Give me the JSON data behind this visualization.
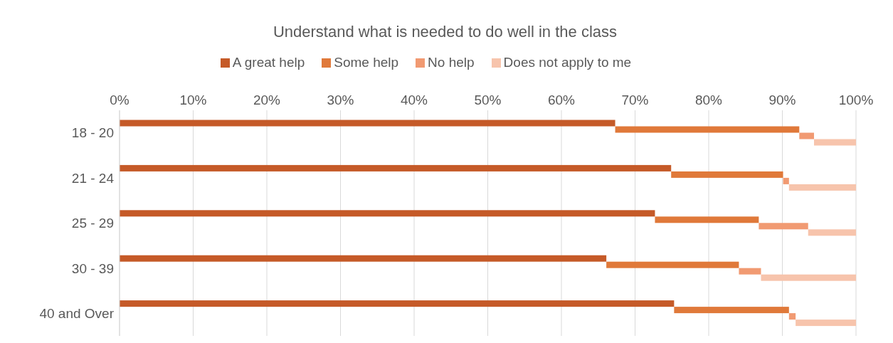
{
  "chart_data": {
    "type": "bar",
    "orientation": "horizontal",
    "stacked": true,
    "title": "Understand what is needed to do well in the class",
    "categories": [
      "18 - 20",
      "21 - 24",
      "25 - 29",
      "30 - 39",
      "40 and Over"
    ],
    "series": [
      {
        "name": "A great help",
        "color": "#c55a28",
        "values": [
          67.3,
          74.9,
          72.7,
          66.1,
          75.3
        ]
      },
      {
        "name": "Some help",
        "color": "#e0793a",
        "values": [
          25.0,
          15.2,
          14.1,
          18.0,
          15.6
        ]
      },
      {
        "name": "No help",
        "color": "#f19a72",
        "values": [
          2.0,
          0.8,
          6.7,
          3.0,
          0.9
        ]
      },
      {
        "name": "Does not apply to me",
        "color": "#f7c4ac",
        "values": [
          5.7,
          9.1,
          6.5,
          12.9,
          8.2
        ]
      }
    ],
    "xlim": [
      0,
      100
    ],
    "xticks": [
      {
        "value": 0,
        "label": "0%"
      },
      {
        "value": 10,
        "label": "10%"
      },
      {
        "value": 20,
        "label": "20%"
      },
      {
        "value": 30,
        "label": "30%"
      },
      {
        "value": 40,
        "label": "40%"
      },
      {
        "value": 50,
        "label": "50%"
      },
      {
        "value": 60,
        "label": "60%"
      },
      {
        "value": 70,
        "label": "70%"
      },
      {
        "value": 80,
        "label": "80%"
      },
      {
        "value": 90,
        "label": "90%"
      },
      {
        "value": 100,
        "label": "100%"
      }
    ],
    "grid": "x",
    "legend": "top"
  }
}
